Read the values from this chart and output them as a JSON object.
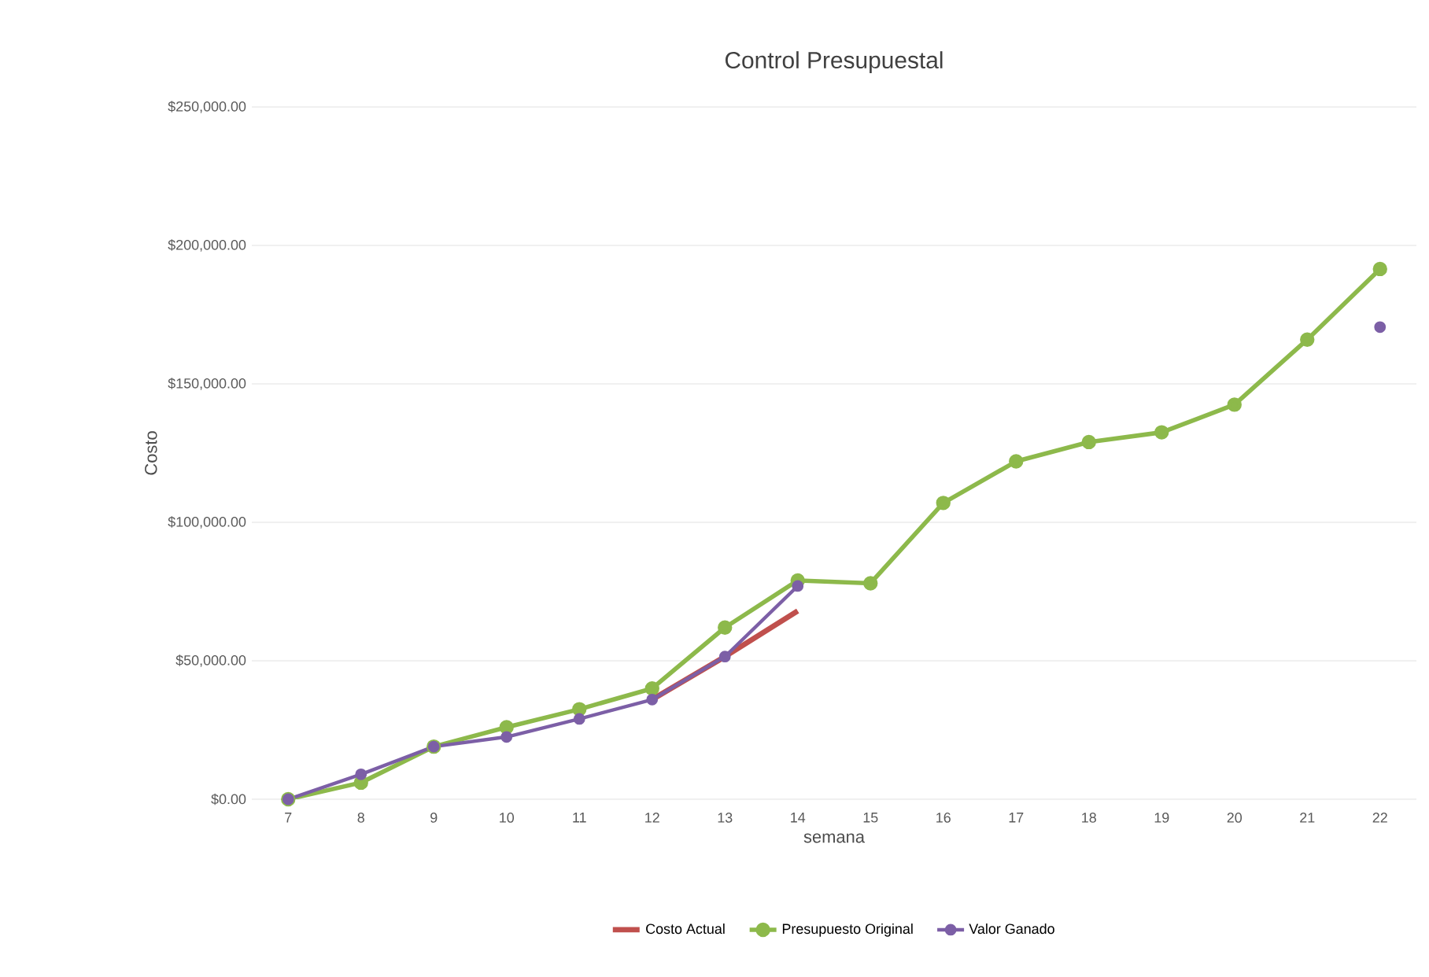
{
  "chart_data": {
    "type": "line",
    "title": "Control Presupuestal",
    "xlabel": "semana",
    "ylabel": "Costo",
    "categories": [
      "7",
      "8",
      "9",
      "10",
      "11",
      "12",
      "13",
      "14",
      "15",
      "16",
      "17",
      "18",
      "19",
      "20",
      "21",
      "22"
    ],
    "series": [
      {
        "name": "Costo Actual",
        "color": "#c0504d",
        "marker": "none",
        "values": [
          null,
          null,
          null,
          null,
          null,
          36000,
          51500,
          68000,
          null,
          null,
          null,
          null,
          null,
          null,
          null,
          null
        ]
      },
      {
        "name": "Presupuesto Original",
        "color": "#8db94b",
        "marker": "circle",
        "values": [
          0,
          6000,
          19000,
          26000,
          32500,
          40000,
          62000,
          79000,
          78000,
          107000,
          122000,
          129000,
          132500,
          142500,
          166000,
          191500
        ]
      },
      {
        "name": "Valor Ganado",
        "color": "#7c5fa6",
        "marker": "circle",
        "values": [
          0,
          9000,
          19000,
          22500,
          29000,
          36000,
          51500,
          77000,
          null,
          null,
          null,
          null,
          null,
          null,
          null,
          170500
        ]
      }
    ],
    "ylim": [
      0,
      250000
    ],
    "yticks": [
      {
        "value": 0,
        "label": "$0.00"
      },
      {
        "value": 50000,
        "label": "$50,000.00"
      },
      {
        "value": 100000,
        "label": "$100,000.00"
      },
      {
        "value": 150000,
        "label": "$150,000.00"
      },
      {
        "value": 200000,
        "label": "$200,000.00"
      },
      {
        "value": 250000,
        "label": "$250,000.00"
      }
    ],
    "grid": "y",
    "legend": "bottom",
    "line_style": "solid"
  }
}
